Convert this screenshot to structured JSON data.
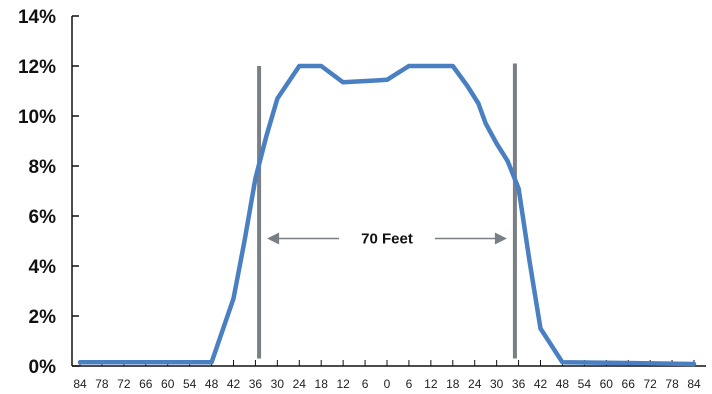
{
  "chart_data": {
    "type": "line",
    "title": "",
    "xlabel": "",
    "ylabel": "",
    "ylim": [
      0,
      14
    ],
    "y_ticks": [
      "0%",
      "2%",
      "4%",
      "6%",
      "8%",
      "10%",
      "12%",
      "14%"
    ],
    "x_tick_labels": [
      "84",
      "78",
      "72",
      "66",
      "60",
      "54",
      "48",
      "42",
      "36",
      "30",
      "24",
      "18",
      "12",
      "6",
      "0",
      "6",
      "12",
      "18",
      "24",
      "30",
      "36",
      "42",
      "48",
      "54",
      "60",
      "66",
      "72",
      "78",
      "84"
    ],
    "series": [
      {
        "color": "#4a7fc1",
        "points": [
          [
            -84,
            0.15
          ],
          [
            -48,
            0.15
          ],
          [
            -42,
            2.7
          ],
          [
            -39,
            5.0
          ],
          [
            -36,
            7.5
          ],
          [
            -33,
            9.2
          ],
          [
            -30,
            10.7
          ],
          [
            -24,
            12.0
          ],
          [
            -18,
            12.0
          ],
          [
            -12,
            11.35
          ],
          [
            0,
            11.45
          ],
          [
            6,
            12.0
          ],
          [
            12,
            12.0
          ],
          [
            18,
            12.0
          ],
          [
            22,
            11.2
          ],
          [
            25,
            10.5
          ],
          [
            27,
            9.7
          ],
          [
            30,
            8.9
          ],
          [
            33,
            8.2
          ],
          [
            36,
            7.1
          ],
          [
            39,
            4.2
          ],
          [
            42,
            1.5
          ],
          [
            48,
            0.15
          ],
          [
            66,
            0.12
          ],
          [
            84,
            0.08
          ]
        ]
      }
    ],
    "vertical_markers": [
      {
        "x": -35,
        "from": 0.3,
        "to": 12.0,
        "color": "#7a7f85"
      },
      {
        "x": 35,
        "from": 0.3,
        "to": 12.1,
        "color": "#7a7f85"
      }
    ],
    "annotation": {
      "text": "70 Feet",
      "y": 5.1,
      "x_from": -35,
      "x_to": 35,
      "color": "#7a7f85"
    },
    "grid": false,
    "legend": "none"
  }
}
